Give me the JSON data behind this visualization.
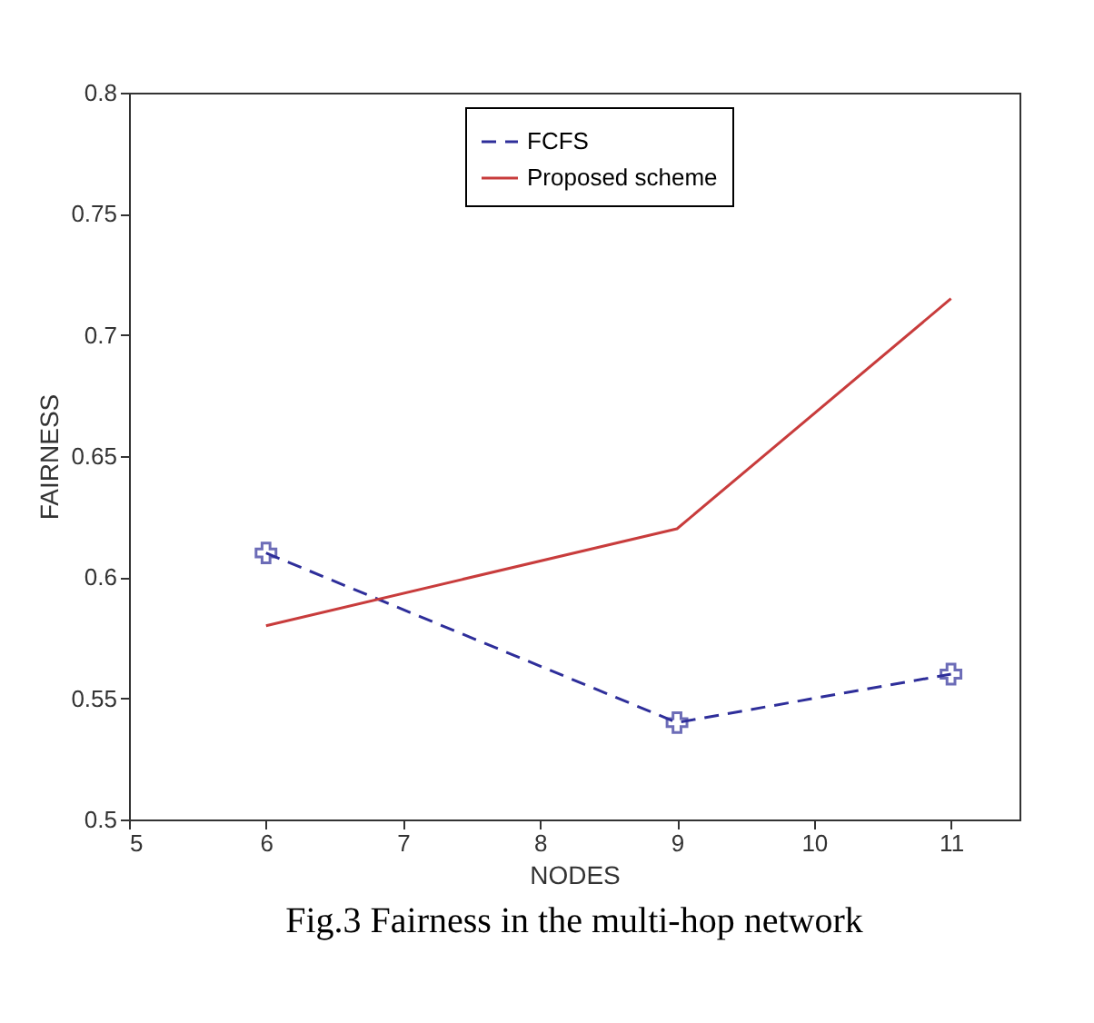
{
  "chart_data": {
    "type": "line",
    "xlabel": "NODES",
    "ylabel": "FAIRNESS",
    "x": [
      6,
      9,
      11
    ],
    "series": [
      {
        "name": "FCFS",
        "color": "#2e2e9a",
        "values": [
          0.61,
          0.54,
          0.56
        ],
        "marker": "cross",
        "line_style": "dashed"
      },
      {
        "name": "Proposed scheme",
        "color": "#c83c3c",
        "values": [
          0.58,
          0.62,
          0.715
        ],
        "marker": "none",
        "line_style": "solid"
      }
    ],
    "xlim": [
      5,
      11.5
    ],
    "xticks": [
      5,
      6,
      7,
      8,
      9,
      10,
      11
    ],
    "ylim": [
      0.5,
      0.8
    ],
    "yticks": [
      0.5,
      0.55,
      0.6,
      0.65,
      0.7,
      0.75,
      0.8
    ],
    "grid": false,
    "legend": "top",
    "annotations": [
      "Fig.3 Fairness in the multi-hop network"
    ]
  }
}
